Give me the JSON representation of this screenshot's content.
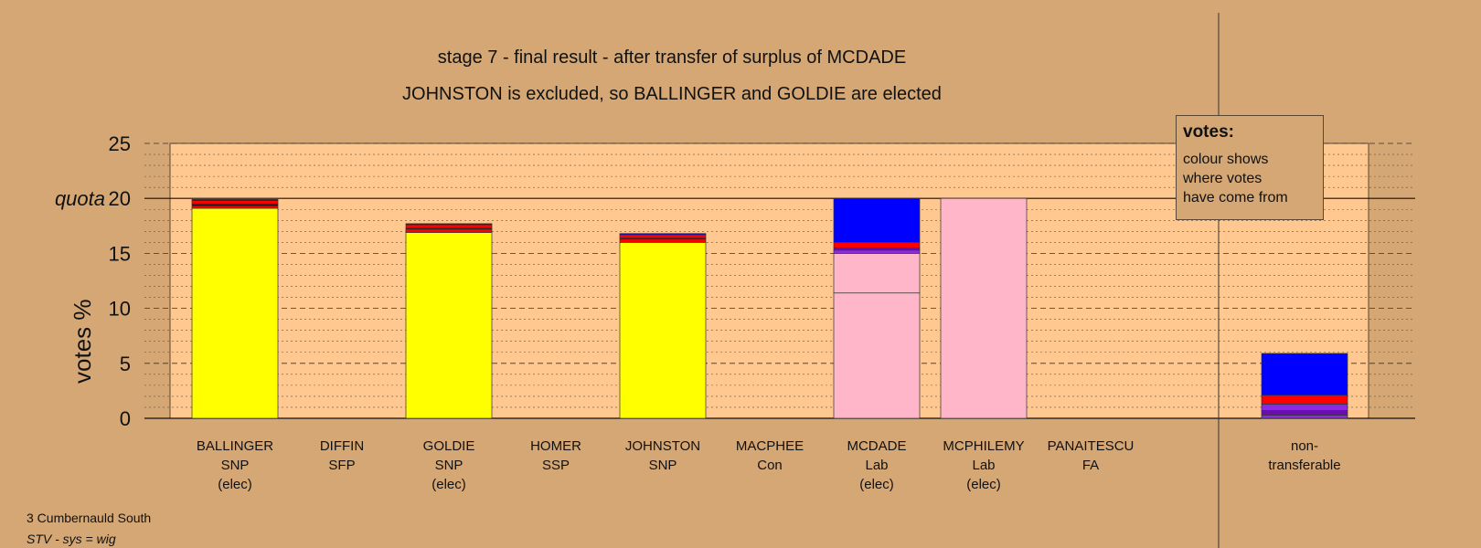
{
  "chart_data": {
    "type": "bar",
    "title": "stage 7 - final result - after transfer of surplus of MCDADE",
    "subtitle": "JOHNSTON is excluded, so BALLINGER and GOLDIE are elected",
    "ylabel": "votes %",
    "quota_label": "quota",
    "quota": 20,
    "ylim": [
      0,
      25
    ],
    "yticks": [
      0,
      5,
      10,
      15,
      20,
      25
    ],
    "grid": true,
    "stacked": true,
    "categories": [
      {
        "name": "BALLINGER",
        "party": "SNP",
        "status": "(elec)"
      },
      {
        "name": "DIFFIN",
        "party": "SFP",
        "status": ""
      },
      {
        "name": "GOLDIE",
        "party": "SNP",
        "status": "(elec)"
      },
      {
        "name": "HOMER",
        "party": "SSP",
        "status": ""
      },
      {
        "name": "JOHNSTON",
        "party": "SNP",
        "status": ""
      },
      {
        "name": "MACPHEE",
        "party": "Con",
        "status": ""
      },
      {
        "name": "MCDADE",
        "party": "Lab",
        "status": "(elec)"
      },
      {
        "name": "MCPHILEMY",
        "party": "Lab",
        "status": "(elec)"
      },
      {
        "name": "PANAITESCU",
        "party": "FA",
        "status": ""
      }
    ],
    "nontransferable_label": [
      "non-",
      "transferable"
    ],
    "bars": [
      {
        "segments": [
          {
            "value": 19.1,
            "color": "#ffff00"
          },
          {
            "value": 0.2,
            "color": "#ff0000"
          },
          {
            "value": 0.2,
            "color": "#222222"
          },
          {
            "value": 0.3,
            "color": "#ff0000"
          },
          {
            "value": 0.1,
            "color": "#222222"
          }
        ]
      },
      {
        "segments": []
      },
      {
        "segments": [
          {
            "value": 16.9,
            "color": "#ffff00"
          },
          {
            "value": 0.3,
            "color": "#ff0000"
          },
          {
            "value": 0.1,
            "color": "#222222"
          },
          {
            "value": 0.3,
            "color": "#ff0000"
          },
          {
            "value": 0.1,
            "color": "#222222"
          }
        ]
      },
      {
        "segments": []
      },
      {
        "segments": [
          {
            "value": 16.0,
            "color": "#ffff00"
          },
          {
            "value": 0.3,
            "color": "#ff0000"
          },
          {
            "value": 0.1,
            "color": "#222222"
          },
          {
            "value": 0.3,
            "color": "#ff0000"
          },
          {
            "value": 0.1,
            "color": "#0000ff"
          }
        ]
      },
      {
        "segments": []
      },
      {
        "segments": [
          {
            "value": 11.4,
            "color": "#ffb6c8"
          },
          {
            "value": 3.6,
            "color": "#ffb6c8"
          },
          {
            "value": 0.3,
            "color": "#8a2be2"
          },
          {
            "value": 0.2,
            "color": "#6a0dad"
          },
          {
            "value": 0.5,
            "color": "#ff0000"
          },
          {
            "value": 4.0,
            "color": "#0000ff"
          }
        ]
      },
      {
        "segments": [
          {
            "value": 20.0,
            "color": "#ffb6c8"
          }
        ]
      },
      {
        "segments": []
      }
    ],
    "nontransferable": {
      "segments": [
        {
          "value": 0.3,
          "color": "#8a2be2"
        },
        {
          "value": 0.4,
          "color": "#6a0dad"
        },
        {
          "value": 0.6,
          "color": "#8a2be2"
        },
        {
          "value": 0.8,
          "color": "#ff0000"
        },
        {
          "value": 3.8,
          "color": "#0000ff"
        }
      ]
    }
  },
  "legend": {
    "title": "votes:",
    "lines": [
      "colour shows",
      "where votes",
      "have come from"
    ]
  },
  "footer": {
    "area": "3 Cumbernauld South",
    "system": "STV - sys = wig"
  }
}
